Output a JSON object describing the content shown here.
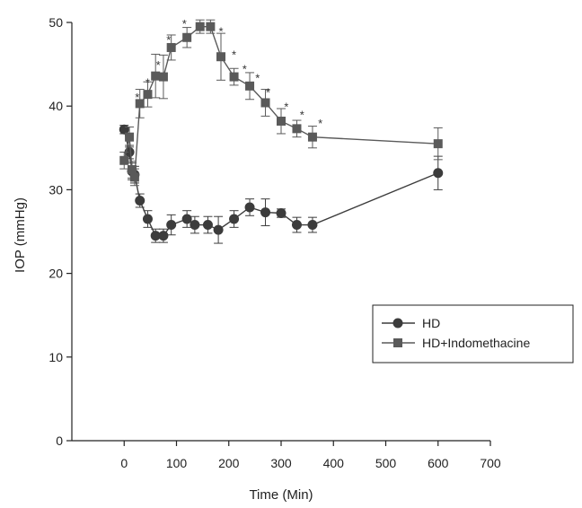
{
  "chart_data": {
    "type": "line",
    "xlabel": "Time (Min)",
    "ylabel": "IOP (mmHg)",
    "xlim": [
      -100,
      700
    ],
    "ylim": [
      0,
      50
    ],
    "x_ticks": [
      "0",
      "100",
      "200",
      "300",
      "400",
      "500",
      "600",
      "700"
    ],
    "y_ticks": [
      "0",
      "10",
      "20",
      "30",
      "40",
      "50"
    ],
    "grid": false,
    "legend_position": "bottom-right",
    "colors": {
      "series_hd": "#3c3c3c",
      "series_indo": "#5a5a5a",
      "axis": "#222222"
    },
    "series": [
      {
        "name": "HD",
        "marker": "circle",
        "x": [
          0,
          10,
          15,
          20,
          30,
          45,
          60,
          75,
          90,
          120,
          135,
          160,
          180,
          210,
          240,
          270,
          300,
          330,
          360,
          600
        ],
        "y": [
          37.2,
          34.5,
          32.2,
          31.8,
          28.7,
          26.5,
          24.5,
          24.5,
          25.8,
          26.5,
          25.8,
          25.8,
          25.2,
          26.5,
          27.9,
          27.3,
          27.2,
          25.8,
          25.8,
          32.0
        ],
        "err": [
          0.5,
          0.8,
          1.0,
          1.0,
          0.8,
          1.0,
          0.8,
          0.8,
          1.2,
          1.0,
          1.0,
          1.0,
          1.6,
          1.0,
          1.0,
          1.6,
          0.5,
          0.9,
          0.9,
          2.0
        ]
      },
      {
        "name": "HD+Indomethacine",
        "marker": "square",
        "x": [
          0,
          10,
          15,
          20,
          30,
          45,
          60,
          75,
          90,
          120,
          145,
          165,
          185,
          210,
          240,
          270,
          300,
          330,
          360,
          600
        ],
        "y": [
          33.5,
          36.3,
          32.4,
          31.5,
          40.3,
          41.4,
          43.6,
          43.5,
          47.0,
          48.2,
          49.5,
          49.5,
          45.9,
          43.5,
          42.4,
          40.4,
          38.2,
          37.3,
          36.3,
          35.5
        ],
        "err": [
          1.0,
          1.2,
          1.0,
          1.0,
          1.7,
          1.5,
          2.6,
          2.6,
          1.5,
          1.2,
          0.8,
          0.8,
          2.8,
          1.0,
          1.6,
          1.6,
          1.5,
          1.0,
          1.3,
          1.9
        ]
      }
    ],
    "annotations": [
      {
        "text": "*",
        "x": 25,
        "y": 41.4
      },
      {
        "text": "*",
        "x": 45,
        "y": 43.2
      },
      {
        "text": "*",
        "x": 65,
        "y": 45.3
      },
      {
        "text": "*",
        "x": 85,
        "y": 48.3
      },
      {
        "text": "*",
        "x": 115,
        "y": 50.2
      },
      {
        "text": "*",
        "x": 185,
        "y": 49.3
      },
      {
        "text": "*",
        "x": 210,
        "y": 46.5
      },
      {
        "text": "*",
        "x": 230,
        "y": 44.8
      },
      {
        "text": "*",
        "x": 255,
        "y": 43.7
      },
      {
        "text": "*",
        "x": 275,
        "y": 42.0
      },
      {
        "text": "*",
        "x": 310,
        "y": 40.3
      },
      {
        "text": "*",
        "x": 340,
        "y": 39.3
      },
      {
        "text": "*",
        "x": 375,
        "y": 38.3
      }
    ]
  }
}
